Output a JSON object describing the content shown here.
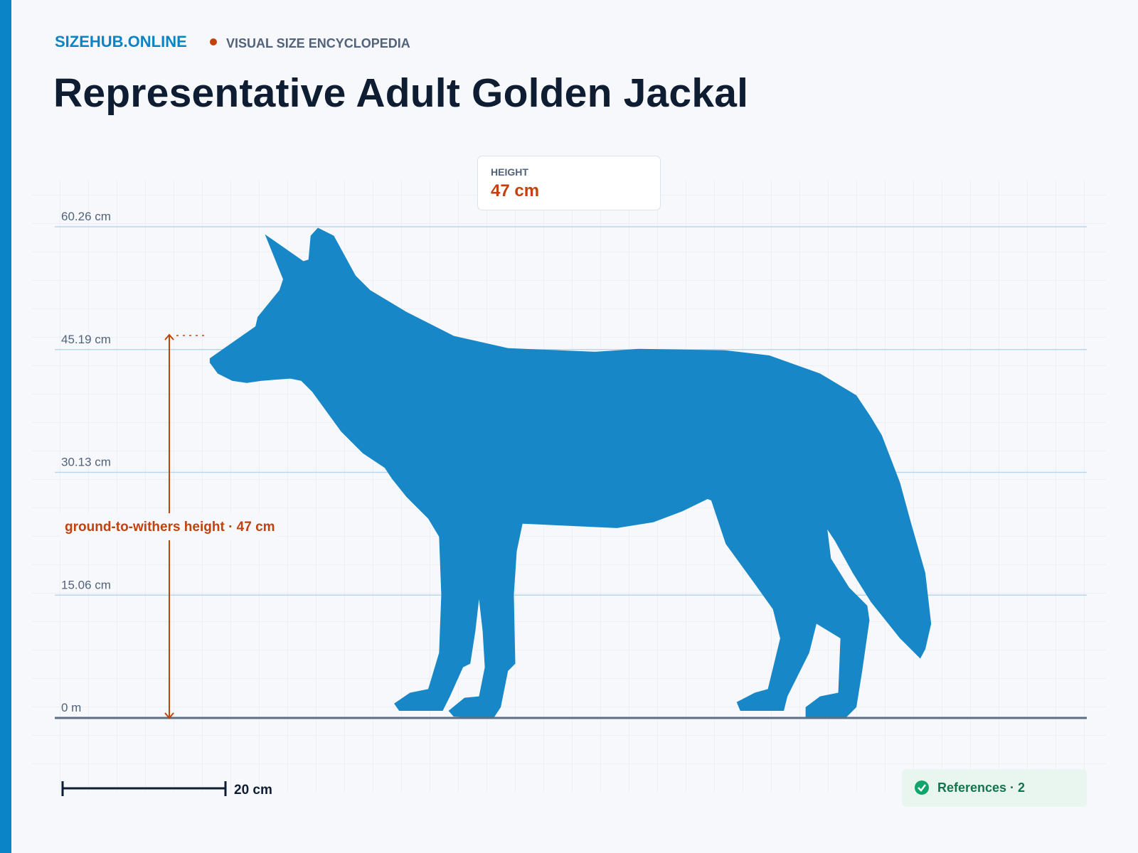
{
  "header": {
    "brand": "SIZEHUB.ONLINE",
    "tagline": "VISUAL SIZE ENCYCLOPEDIA",
    "title": "Representative Adult Golden Jackal"
  },
  "height_card": {
    "label": "HEIGHT",
    "value": "47 cm"
  },
  "scale": {
    "ticks": [
      "60.26 cm",
      "45.19 cm",
      "30.13 cm",
      "15.06 cm",
      "0 m"
    ]
  },
  "measurement": {
    "label": "ground-to-withers height · 47 cm"
  },
  "scale_bar": {
    "label": "20 cm"
  },
  "references": {
    "label": "References · 2"
  }
}
